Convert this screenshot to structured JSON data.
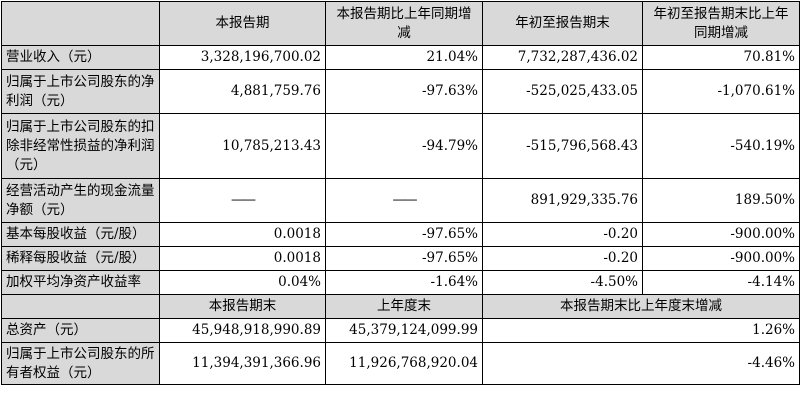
{
  "header": {
    "col1": "",
    "col2": "本报告期",
    "col3": "本报告期比上年同期增减",
    "col4": "年初至报告期末",
    "col5": "年初至报告期末比上年同期增减"
  },
  "rows": [
    {
      "label": "营业收入（元）",
      "v1": "3,328,196,700.02",
      "v2": "21.04%",
      "v3": "7,732,287,436.02",
      "v4": "70.81%"
    },
    {
      "label": "归属于上市公司股东的净利润（元）",
      "v1": "4,881,759.76",
      "v2": "-97.63%",
      "v3": "-525,025,433.05",
      "v4": "-1,070.61%"
    },
    {
      "label": "归属于上市公司股东的扣除非经常性损益的净利润（元）",
      "v1": "10,785,213.43",
      "v2": "-94.79%",
      "v3": "-515,796,568.43",
      "v4": "-540.19%"
    },
    {
      "label": "经营活动产生的现金流量净额（元）",
      "v1": "——",
      "v2": "——",
      "v3": "891,929,335.76",
      "v4": "189.50%"
    },
    {
      "label": "基本每股收益（元/股）",
      "v1": "0.0018",
      "v2": "-97.65%",
      "v3": "-0.20",
      "v4": "-900.00%"
    },
    {
      "label": "稀释每股收益（元/股）",
      "v1": "0.0018",
      "v2": "-97.65%",
      "v3": "-0.20",
      "v4": "-900.00%"
    },
    {
      "label": "加权平均净资产收益率",
      "v1": "0.04%",
      "v2": "-1.64%",
      "v3": "-4.50%",
      "v4": "-4.14%"
    }
  ],
  "header2": {
    "col1": "",
    "col2": "本报告期末",
    "col3": "上年度末",
    "col4": "本报告期末比上年度末增减"
  },
  "rows2": [
    {
      "label": "总资产（元）",
      "v1": "45,948,918,990.89",
      "v2": "45,379,124,099.99",
      "v3": "1.26%"
    },
    {
      "label": "归属于上市公司股东的所有者权益（元）",
      "v1": "11,394,391,366.96",
      "v2": "11,926,768,920.04",
      "v3": "-4.46%"
    }
  ]
}
